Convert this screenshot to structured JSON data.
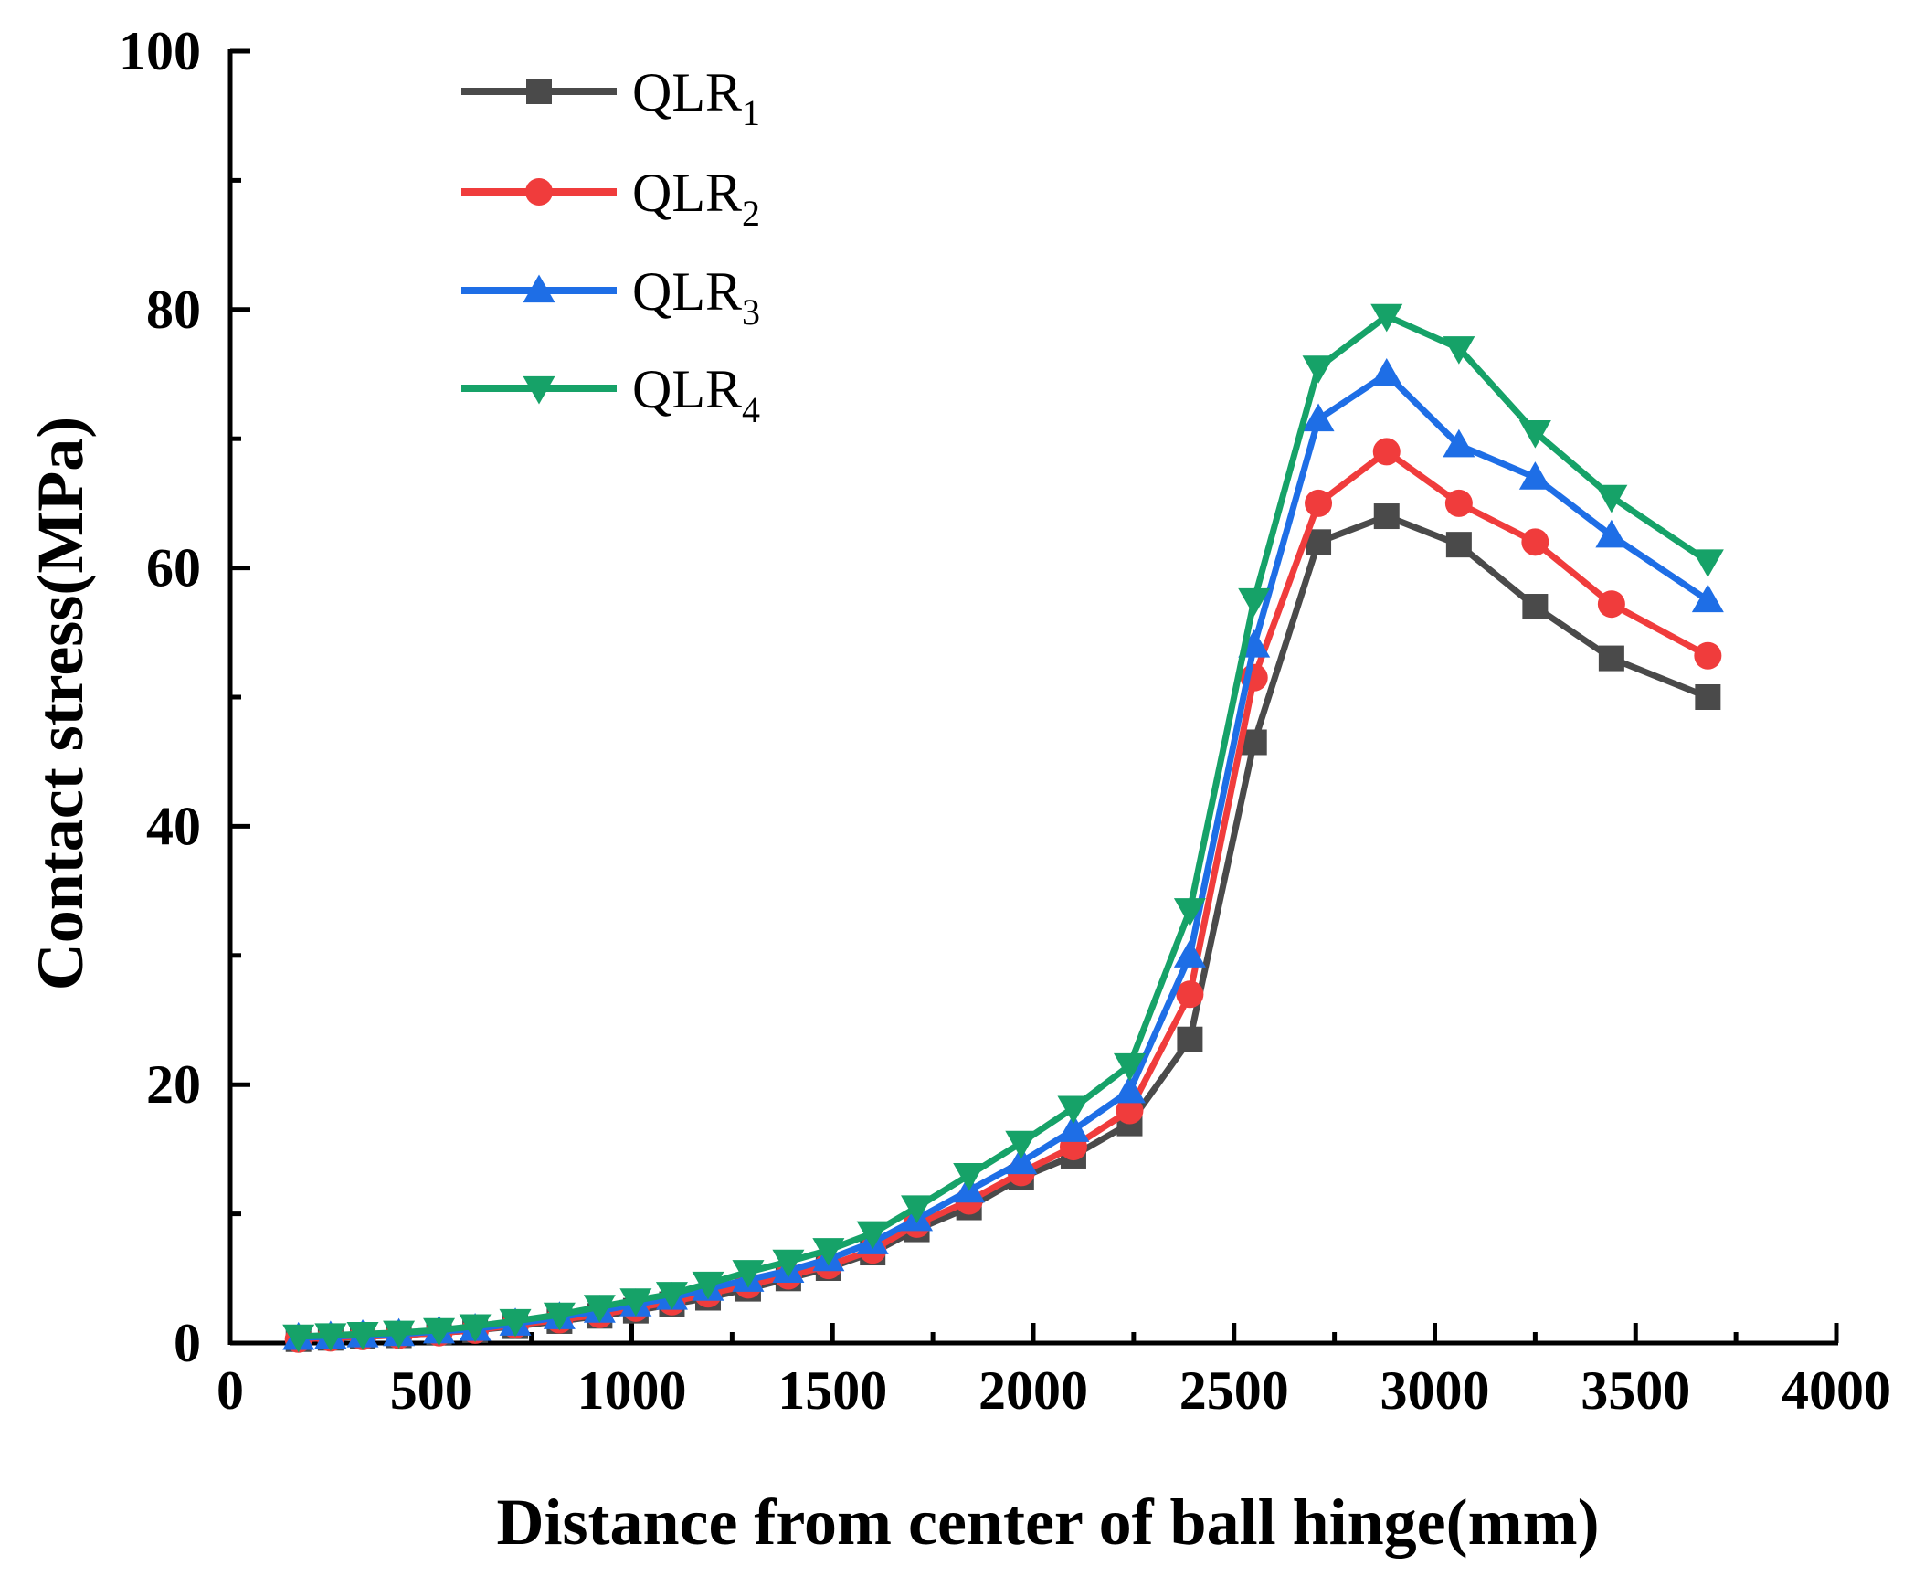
{
  "chart_data": {
    "type": "line",
    "title": "",
    "xlabel": "Distance from center of ball hinge(mm)",
    "ylabel": "Contact stress(MPa)",
    "xlim": [
      0,
      4000
    ],
    "ylim": [
      0,
      100
    ],
    "xticks": [
      0,
      500,
      1000,
      1500,
      2000,
      2500,
      3000,
      3500,
      4000
    ],
    "yticks": [
      0,
      20,
      40,
      60,
      80,
      100
    ],
    "xtick_labels": [
      "0",
      "500",
      "1000",
      "1500",
      "2000",
      "2500",
      "3000",
      "3500",
      "4000"
    ],
    "ytick_labels": [
      "0",
      "20",
      "40",
      "60",
      "80",
      "100"
    ],
    "grid": false,
    "legend_position": "top-left",
    "series": [
      {
        "name": "QLR1",
        "label_main": "QLR",
        "label_sub": "1",
        "color": "#4a4a4a",
        "marker": "square",
        "points": [
          [
            170,
            0.3
          ],
          [
            250,
            0.4
          ],
          [
            330,
            0.5
          ],
          [
            420,
            0.6
          ],
          [
            520,
            0.8
          ],
          [
            610,
            1.0
          ],
          [
            710,
            1.3
          ],
          [
            820,
            1.7
          ],
          [
            920,
            2.1
          ],
          [
            1010,
            2.5
          ],
          [
            1100,
            3.0
          ],
          [
            1190,
            3.5
          ],
          [
            1290,
            4.2
          ],
          [
            1390,
            5.0
          ],
          [
            1490,
            5.8
          ],
          [
            1600,
            7.0
          ],
          [
            1710,
            8.8
          ],
          [
            1840,
            10.5
          ],
          [
            1970,
            12.8
          ],
          [
            2100,
            14.5
          ],
          [
            2240,
            17.0
          ],
          [
            2390,
            23.5
          ],
          [
            2550,
            46.5
          ],
          [
            2710,
            62.0
          ],
          [
            2880,
            64.0
          ],
          [
            3060,
            61.8
          ],
          [
            3250,
            57.0
          ],
          [
            3440,
            53.0
          ],
          [
            3680,
            50.0
          ]
        ]
      },
      {
        "name": "QLR2",
        "label_main": "QLR",
        "label_sub": "2",
        "color": "#f03c3c",
        "marker": "circle",
        "points": [
          [
            170,
            0.3
          ],
          [
            250,
            0.4
          ],
          [
            330,
            0.5
          ],
          [
            420,
            0.6
          ],
          [
            520,
            0.8
          ],
          [
            610,
            1.0
          ],
          [
            710,
            1.4
          ],
          [
            820,
            1.8
          ],
          [
            920,
            2.2
          ],
          [
            1010,
            2.7
          ],
          [
            1100,
            3.2
          ],
          [
            1190,
            3.8
          ],
          [
            1290,
            4.5
          ],
          [
            1390,
            5.2
          ],
          [
            1490,
            6.0
          ],
          [
            1600,
            7.2
          ],
          [
            1710,
            9.2
          ],
          [
            1840,
            11.0
          ],
          [
            1970,
            13.2
          ],
          [
            2100,
            15.2
          ],
          [
            2240,
            18.0
          ],
          [
            2390,
            27.0
          ],
          [
            2550,
            51.5
          ],
          [
            2710,
            65.0
          ],
          [
            2880,
            69.0
          ],
          [
            3060,
            65.0
          ],
          [
            3250,
            62.0
          ],
          [
            3440,
            57.2
          ],
          [
            3680,
            53.2
          ]
        ]
      },
      {
        "name": "QLR3",
        "label_main": "QLR",
        "label_sub": "3",
        "color": "#1e6ee6",
        "marker": "triangle-up",
        "points": [
          [
            170,
            0.4
          ],
          [
            250,
            0.5
          ],
          [
            330,
            0.6
          ],
          [
            420,
            0.7
          ],
          [
            520,
            0.9
          ],
          [
            610,
            1.1
          ],
          [
            710,
            1.5
          ],
          [
            820,
            2.0
          ],
          [
            920,
            2.5
          ],
          [
            1010,
            3.0
          ],
          [
            1100,
            3.5
          ],
          [
            1190,
            4.2
          ],
          [
            1290,
            4.9
          ],
          [
            1390,
            5.6
          ],
          [
            1490,
            6.5
          ],
          [
            1600,
            7.8
          ],
          [
            1710,
            9.6
          ],
          [
            1840,
            11.8
          ],
          [
            1970,
            14.0
          ],
          [
            2100,
            16.5
          ],
          [
            2240,
            19.5
          ],
          [
            2390,
            30.0
          ],
          [
            2550,
            54.0
          ],
          [
            2710,
            71.5
          ],
          [
            2880,
            75.0
          ],
          [
            3060,
            69.5
          ],
          [
            3250,
            67.0
          ],
          [
            3440,
            62.5
          ],
          [
            3680,
            57.5
          ]
        ]
      },
      {
        "name": "QLR4",
        "label_main": "QLR",
        "label_sub": "4",
        "color": "#16a268",
        "marker": "triangle-down",
        "points": [
          [
            170,
            0.5
          ],
          [
            250,
            0.6
          ],
          [
            330,
            0.7
          ],
          [
            420,
            0.8
          ],
          [
            520,
            1.0
          ],
          [
            610,
            1.3
          ],
          [
            710,
            1.7
          ],
          [
            820,
            2.2
          ],
          [
            920,
            2.8
          ],
          [
            1010,
            3.3
          ],
          [
            1100,
            3.8
          ],
          [
            1190,
            4.6
          ],
          [
            1290,
            5.5
          ],
          [
            1390,
            6.3
          ],
          [
            1490,
            7.2
          ],
          [
            1600,
            8.5
          ],
          [
            1710,
            10.5
          ],
          [
            1840,
            13.0
          ],
          [
            1970,
            15.5
          ],
          [
            2100,
            18.2
          ],
          [
            2240,
            21.5
          ],
          [
            2390,
            33.5
          ],
          [
            2550,
            57.5
          ],
          [
            2710,
            75.5
          ],
          [
            2880,
            79.5
          ],
          [
            3060,
            77.0
          ],
          [
            3250,
            70.5
          ],
          [
            3440,
            65.5
          ],
          [
            3680,
            60.5
          ]
        ]
      }
    ]
  }
}
